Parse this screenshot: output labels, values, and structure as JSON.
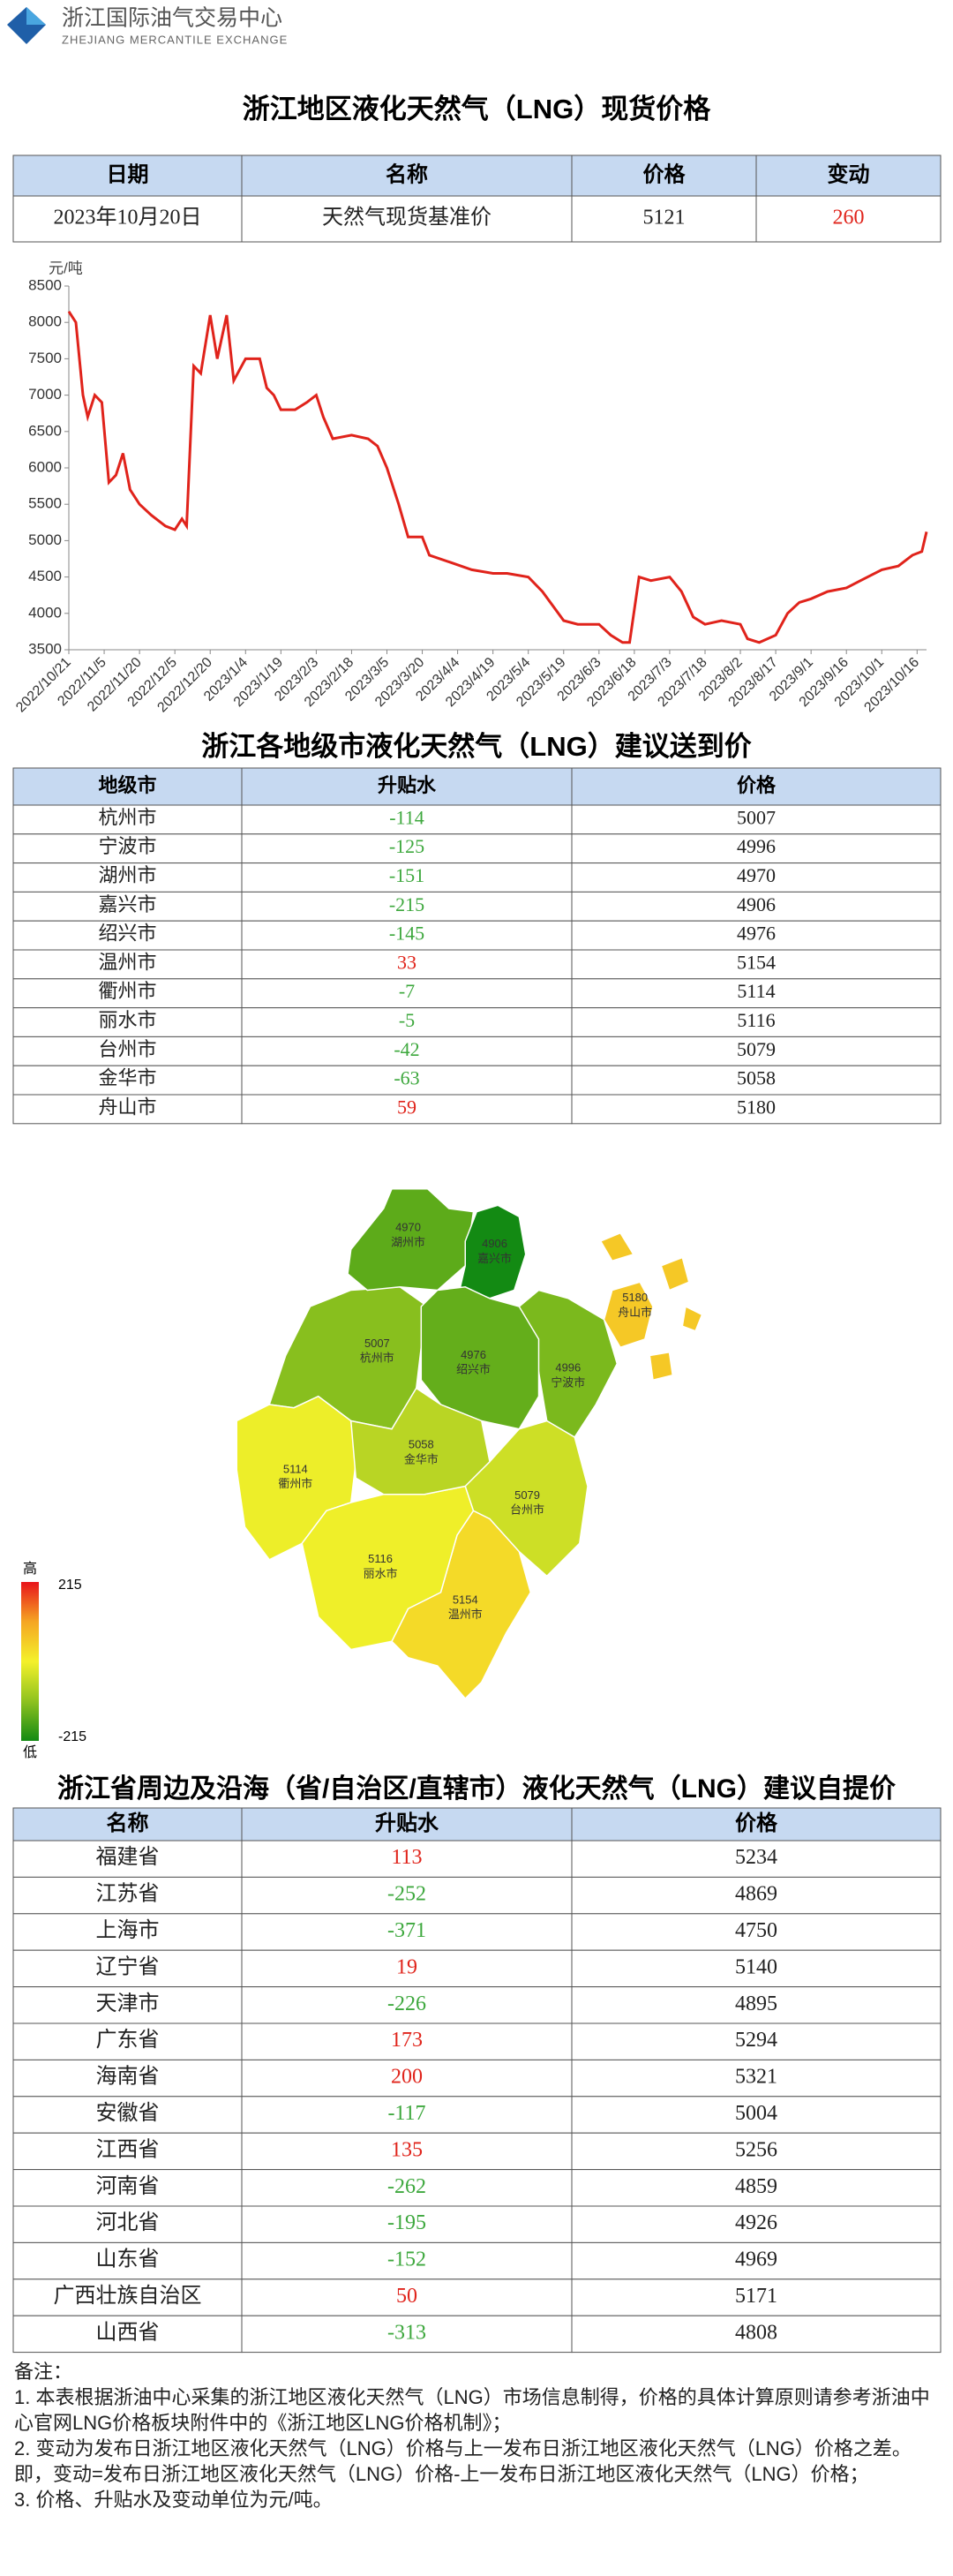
{
  "header": {
    "org": "浙江国际油气交易中心",
    "org_en": "ZHEJIANG MERCANTILE EXCHANGE"
  },
  "spot": {
    "title": "浙江地区液化天然气（LNG）现货价格",
    "headers": [
      "日期",
      "名称",
      "价格",
      "变动"
    ],
    "rows": [
      [
        "2023年10月20日",
        "天然气现货基准价",
        5121,
        260
      ]
    ]
  },
  "chart_data": {
    "type": "line",
    "ylabel": "元/吨",
    "color": "#e0231b",
    "x": [
      "2022/10/21",
      "2022/10/24",
      "2022/10/27",
      "2022/10/29",
      "2022/11/1",
      "2022/11/4",
      "2022/11/7",
      "2022/11/10",
      "2022/11/13",
      "2022/11/16",
      "2022/11/20",
      "2022/11/25",
      "2022/12/1",
      "2022/12/5",
      "2022/12/8",
      "2022/12/10",
      "2022/12/13",
      "2022/12/16",
      "2022/12/20",
      "2022/12/23",
      "2022/12/27",
      "2022/12/30",
      "2023/1/4",
      "2023/1/10",
      "2023/1/13",
      "2023/1/16",
      "2023/1/19",
      "2023/1/25",
      "2023/1/30",
      "2023/2/3",
      "2023/2/6",
      "2023/2/10",
      "2023/2/18",
      "2023/2/25",
      "2023/3/1",
      "2023/3/5",
      "2023/3/10",
      "2023/3/14",
      "2023/3/20",
      "2023/3/23",
      "2023/4/1",
      "2023/4/10",
      "2023/4/19",
      "2023/4/25",
      "2023/5/4",
      "2023/5/10",
      "2023/5/19",
      "2023/5/25",
      "2023/6/3",
      "2023/6/8",
      "2023/6/13",
      "2023/6/16",
      "2023/6/20",
      "2023/6/25",
      "2023/7/3",
      "2023/7/8",
      "2023/7/13",
      "2023/7/18",
      "2023/7/25",
      "2023/8/2",
      "2023/8/5",
      "2023/8/10",
      "2023/8/17",
      "2023/8/22",
      "2023/8/27",
      "2023/9/1",
      "2023/9/8",
      "2023/9/16",
      "2023/9/22",
      "2023/10/1",
      "2023/10/8",
      "2023/10/14",
      "2023/10/18",
      "2023/10/20"
    ],
    "values": [
      8150,
      8000,
      7000,
      6700,
      7000,
      6900,
      5800,
      5900,
      6200,
      5700,
      5500,
      5350,
      5200,
      5150,
      5300,
      5200,
      7400,
      7300,
      8100,
      7500,
      8100,
      7200,
      7500,
      7500,
      7100,
      7000,
      6800,
      6800,
      6900,
      7000,
      6700,
      6400,
      6450,
      6400,
      6300,
      6000,
      5500,
      5050,
      5050,
      4800,
      4700,
      4600,
      4550,
      4550,
      4500,
      4300,
      3900,
      3850,
      3850,
      3700,
      3600,
      3600,
      4500,
      4450,
      4500,
      4300,
      3950,
      3850,
      3900,
      3850,
      3650,
      3600,
      3700,
      4000,
      4150,
      4200,
      4300,
      4350,
      4450,
      4600,
      4650,
      4800,
      4850,
      5121
    ],
    "xlim": [
      "2022/10/21",
      "2023/10/20"
    ],
    "xticks": [
      "2022/10/21",
      "2022/11/5",
      "2022/11/20",
      "2022/12/5",
      "2022/12/20",
      "2023/1/4",
      "2023/1/19",
      "2023/2/3",
      "2023/2/18",
      "2023/3/5",
      "2023/3/20",
      "2023/4/4",
      "2023/4/19",
      "2023/5/4",
      "2023/5/19",
      "2023/6/3",
      "2023/6/18",
      "2023/7/3",
      "2023/7/18",
      "2023/8/2",
      "2023/8/17",
      "2023/9/1",
      "2023/9/16",
      "2023/10/1",
      "2023/10/16"
    ],
    "ylim": [
      3500,
      8500
    ],
    "yticks": [
      3500,
      4000,
      4500,
      5000,
      5500,
      6000,
      6500,
      7000,
      7500,
      8000,
      8500
    ]
  },
  "cities": {
    "title": "浙江各地级市液化天然气（LNG）建议送到价",
    "headers": [
      "地级市",
      "升贴水",
      "价格"
    ],
    "rows": [
      [
        "杭州市",
        -114,
        5007
      ],
      [
        "宁波市",
        -125,
        4996
      ],
      [
        "湖州市",
        -151,
        4970
      ],
      [
        "嘉兴市",
        -215,
        4906
      ],
      [
        "绍兴市",
        -145,
        4976
      ],
      [
        "温州市",
        33,
        5154
      ],
      [
        "衢州市",
        -7,
        5114
      ],
      [
        "丽水市",
        -5,
        5116
      ],
      [
        "台州市",
        -42,
        5079
      ],
      [
        "金华市",
        -63,
        5058
      ],
      [
        "舟山市",
        59,
        5180
      ]
    ]
  },
  "map": {
    "legend": {
      "high": "高",
      "max": 215,
      "low": "低",
      "min": -215
    }
  },
  "provinces": {
    "title": "浙江省周边及沿海（省/自治区/直辖市）液化天然气（LNG）建议自提价",
    "headers": [
      "名称",
      "升贴水",
      "价格"
    ],
    "rows": [
      [
        "福建省",
        113,
        5234
      ],
      [
        "江苏省",
        -252,
        4869
      ],
      [
        "上海市",
        -371,
        4750
      ],
      [
        "辽宁省",
        19,
        5140
      ],
      [
        "天津市",
        -226,
        4895
      ],
      [
        "广东省",
        173,
        5294
      ],
      [
        "海南省",
        200,
        5321
      ],
      [
        "安徽省",
        -117,
        5004
      ],
      [
        "江西省",
        135,
        5256
      ],
      [
        "河南省",
        -262,
        4859
      ],
      [
        "河北省",
        -195,
        4926
      ],
      [
        "山东省",
        -152,
        4969
      ],
      [
        "广西壮族自治区",
        50,
        5171
      ],
      [
        "山西省",
        -313,
        4808
      ]
    ]
  },
  "notes": {
    "title": "备注：",
    "items": [
      "1. 本表根据浙油中心采集的浙江地区液化天然气（LNG）市场信息制得，价格的具体计算原则请参考浙油中心官网LNG价格板块附件中的《浙江地区LNG价格机制》；",
      "2. 变动为发布日浙江地区液化天然气（LNG）价格与上一发布日浙江地区液化天然气（LNG）价格之差。即，变动=发布日浙江地区液化天然气（LNG）价格-上一发布日浙江地区液化天然气（LNG）价格；",
      "3. 价格、升贴水及变动单位为元/吨。"
    ]
  }
}
